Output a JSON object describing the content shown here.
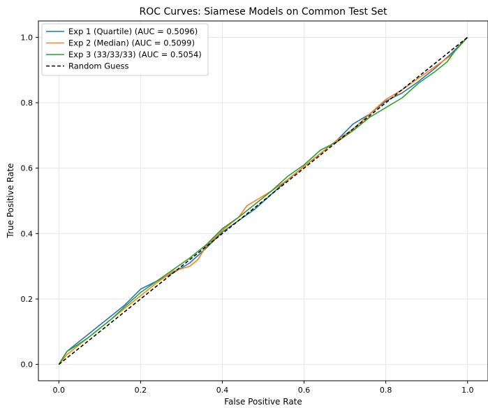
{
  "chart_data": {
    "type": "line",
    "title": "ROC Curves: Siamese Models on Common Test Set",
    "xlabel": "False Positive Rate",
    "ylabel": "True Positive Rate",
    "xlim": [
      -0.05,
      1.05
    ],
    "ylim": [
      -0.05,
      1.05
    ],
    "xticks": [
      0.0,
      0.2,
      0.4,
      0.6,
      0.8,
      1.0
    ],
    "yticks": [
      0.0,
      0.2,
      0.4,
      0.6,
      0.8,
      1.0
    ],
    "xtick_labels": [
      "0.0",
      "0.2",
      "0.4",
      "0.6",
      "0.8",
      "1.0"
    ],
    "ytick_labels": [
      "0.0",
      "0.2",
      "0.4",
      "0.6",
      "0.8",
      "1.0"
    ],
    "grid": true,
    "legend_position": "top-left",
    "series": [
      {
        "name": "Exp 1 (Quartile) (AUC = 0.5096)",
        "color": "#1f77b4",
        "style": "solid",
        "x": [
          0.0,
          0.02,
          0.05,
          0.08,
          0.1,
          0.13,
          0.16,
          0.2,
          0.24,
          0.28,
          0.32,
          0.36,
          0.4,
          0.44,
          0.48,
          0.52,
          0.56,
          0.6,
          0.64,
          0.68,
          0.72,
          0.76,
          0.8,
          0.84,
          0.88,
          0.92,
          0.96,
          1.0
        ],
        "y": [
          0.0,
          0.04,
          0.07,
          0.1,
          0.12,
          0.15,
          0.18,
          0.23,
          0.255,
          0.28,
          0.31,
          0.355,
          0.405,
          0.44,
          0.475,
          0.52,
          0.565,
          0.605,
          0.645,
          0.685,
          0.735,
          0.765,
          0.805,
          0.83,
          0.865,
          0.905,
          0.95,
          1.0
        ]
      },
      {
        "name": "Exp 2 (Median) (AUC = 0.5099)",
        "color": "#ff7f0e",
        "style": "solid",
        "x": [
          0.0,
          0.02,
          0.05,
          0.08,
          0.1,
          0.13,
          0.16,
          0.2,
          0.24,
          0.28,
          0.32,
          0.34,
          0.36,
          0.4,
          0.44,
          0.46,
          0.48,
          0.52,
          0.56,
          0.6,
          0.64,
          0.68,
          0.72,
          0.76,
          0.8,
          0.84,
          0.88,
          0.92,
          0.96,
          1.0
        ],
        "y": [
          0.0,
          0.03,
          0.06,
          0.09,
          0.11,
          0.14,
          0.17,
          0.21,
          0.25,
          0.285,
          0.3,
          0.32,
          0.36,
          0.41,
          0.45,
          0.485,
          0.5,
          0.53,
          0.565,
          0.605,
          0.645,
          0.685,
          0.72,
          0.765,
          0.81,
          0.84,
          0.875,
          0.91,
          0.945,
          1.0
        ]
      },
      {
        "name": "Exp 3 (33/33/33) (AUC = 0.5054)",
        "color": "#2ca02c",
        "style": "solid",
        "x": [
          0.0,
          0.02,
          0.04,
          0.07,
          0.1,
          0.13,
          0.16,
          0.2,
          0.24,
          0.28,
          0.32,
          0.36,
          0.4,
          0.44,
          0.48,
          0.52,
          0.56,
          0.6,
          0.64,
          0.68,
          0.72,
          0.76,
          0.8,
          0.84,
          0.88,
          0.92,
          0.95,
          0.97,
          1.0
        ],
        "y": [
          0.0,
          0.04,
          0.055,
          0.08,
          0.11,
          0.14,
          0.175,
          0.22,
          0.255,
          0.29,
          0.325,
          0.365,
          0.415,
          0.45,
          0.49,
          0.53,
          0.575,
          0.61,
          0.655,
          0.68,
          0.715,
          0.755,
          0.785,
          0.815,
          0.86,
          0.895,
          0.925,
          0.96,
          1.0
        ]
      },
      {
        "name": "Random Guess",
        "color": "#000000",
        "style": "dashed",
        "x": [
          0.0,
          1.0
        ],
        "y": [
          0.0,
          1.0
        ]
      }
    ]
  }
}
